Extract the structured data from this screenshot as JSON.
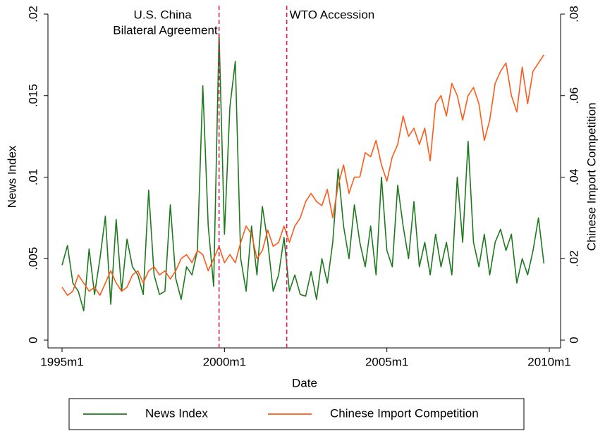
{
  "chart_data": {
    "type": "line",
    "xlabel": "Date",
    "ylabel": "News Index",
    "y2label": "Chinese Import Competition",
    "x": [
      "1995m1",
      "1995m3",
      "1995m5",
      "1995m7",
      "1995m9",
      "1995m11",
      "1996m1",
      "1996m3",
      "1996m5",
      "1996m7",
      "1996m9",
      "1996m11",
      "1997m1",
      "1997m3",
      "1997m5",
      "1997m7",
      "1997m9",
      "1997m11",
      "1998m1",
      "1998m3",
      "1998m5",
      "1998m7",
      "1998m9",
      "1998m11",
      "1999m1",
      "1999m3",
      "1999m5",
      "1999m7",
      "1999m9",
      "1999m11",
      "2000m1",
      "2000m3",
      "2000m5",
      "2000m7",
      "2000m9",
      "2000m11",
      "2001m1",
      "2001m3",
      "2001m5",
      "2001m7",
      "2001m9",
      "2001m11",
      "2002m1",
      "2002m3",
      "2002m5",
      "2002m7",
      "2002m9",
      "2002m11",
      "2003m1",
      "2003m3",
      "2003m5",
      "2003m7",
      "2003m9",
      "2003m11",
      "2004m1",
      "2004m3",
      "2004m5",
      "2004m7",
      "2004m9",
      "2004m11",
      "2005m1",
      "2005m3",
      "2005m5",
      "2005m7",
      "2005m9",
      "2005m11",
      "2006m1",
      "2006m3",
      "2006m5",
      "2006m7",
      "2006m9",
      "2006m11",
      "2007m1",
      "2007m3",
      "2007m5",
      "2007m7",
      "2007m9",
      "2007m11",
      "2008m1",
      "2008m3",
      "2008m5",
      "2008m7",
      "2008m9",
      "2008m11",
      "2009m1",
      "2009m3",
      "2009m5",
      "2009m7",
      "2009m9",
      "2009m11"
    ],
    "series": [
      {
        "name": "News Index",
        "color": "#1e7a1e",
        "axis": "y",
        "values": [
          0.0046,
          0.0058,
          0.0035,
          0.003,
          0.0018,
          0.0056,
          0.0028,
          0.005,
          0.0076,
          0.0022,
          0.0074,
          0.003,
          0.0062,
          0.0045,
          0.004,
          0.0028,
          0.0092,
          0.004,
          0.0028,
          0.003,
          0.0083,
          0.0038,
          0.0025,
          0.0045,
          0.004,
          0.0055,
          0.0156,
          0.007,
          0.0033,
          0.0188,
          0.0065,
          0.0143,
          0.0171,
          0.005,
          0.003,
          0.007,
          0.004,
          0.0082,
          0.006,
          0.003,
          0.004,
          0.0063,
          0.003,
          0.004,
          0.0028,
          0.0027,
          0.0042,
          0.0025,
          0.005,
          0.0035,
          0.006,
          0.0105,
          0.007,
          0.005,
          0.0083,
          0.006,
          0.0045,
          0.007,
          0.004,
          0.01,
          0.0055,
          0.0045,
          0.0095,
          0.007,
          0.005,
          0.0085,
          0.0045,
          0.006,
          0.004,
          0.0065,
          0.0045,
          0.006,
          0.004,
          0.01,
          0.006,
          0.0122,
          0.006,
          0.0045,
          0.0065,
          0.004,
          0.006,
          0.0068,
          0.0055,
          0.0065,
          0.0035,
          0.005,
          0.004,
          0.0055,
          0.0075,
          0.0047
        ]
      },
      {
        "name": "Chinese Import Competition",
        "color": "#ff5a1a",
        "axis": "y2",
        "values": [
          0.013,
          0.011,
          0.012,
          0.016,
          0.014,
          0.012,
          0.013,
          0.011,
          0.014,
          0.017,
          0.014,
          0.012,
          0.013,
          0.016,
          0.017,
          0.014,
          0.017,
          0.018,
          0.016,
          0.017,
          0.015,
          0.017,
          0.02,
          0.021,
          0.019,
          0.022,
          0.021,
          0.017,
          0.02,
          0.023,
          0.019,
          0.021,
          0.019,
          0.024,
          0.028,
          0.026,
          0.02,
          0.022,
          0.027,
          0.023,
          0.024,
          0.028,
          0.024,
          0.028,
          0.03,
          0.034,
          0.036,
          0.034,
          0.033,
          0.037,
          0.03,
          0.038,
          0.043,
          0.036,
          0.04,
          0.04,
          0.046,
          0.045,
          0.049,
          0.043,
          0.039,
          0.045,
          0.048,
          0.055,
          0.05,
          0.052,
          0.048,
          0.052,
          0.044,
          0.058,
          0.06,
          0.055,
          0.063,
          0.06,
          0.054,
          0.06,
          0.062,
          0.058,
          0.049,
          0.054,
          0.063,
          0.066,
          0.068,
          0.06,
          0.056,
          0.067,
          0.058,
          0.066,
          0.068,
          0.07
        ]
      }
    ],
    "xlim": [
      "1995m1",
      "2010m1"
    ],
    "xticks": [
      "1995m1",
      "2000m1",
      "2005m1",
      "2010m1"
    ],
    "ylim": [
      0,
      0.02
    ],
    "yticks": [
      {
        "value": 0,
        "label": "0"
      },
      {
        "value": 0.005,
        "label": ".005"
      },
      {
        "value": 0.01,
        "label": ".01"
      },
      {
        "value": 0.015,
        "label": ".015"
      },
      {
        "value": 0.02,
        "label": ".02"
      }
    ],
    "y2lim": [
      0,
      0.08
    ],
    "y2ticks": [
      {
        "value": 0,
        "label": "0"
      },
      {
        "value": 0.02,
        "label": ".02"
      },
      {
        "value": 0.04,
        "label": ".04"
      },
      {
        "value": 0.06,
        "label": ".06"
      },
      {
        "value": 0.08,
        "label": ".08"
      }
    ],
    "vlines": [
      {
        "x": "1999m11",
        "label": [
          "U.S. China",
          "Bilateral Agreement"
        ],
        "color": "#d0215a"
      },
      {
        "x": "2001m12",
        "label": [
          "WTO Accession"
        ],
        "color": "#d0215a"
      }
    ],
    "legend": "bottom"
  }
}
